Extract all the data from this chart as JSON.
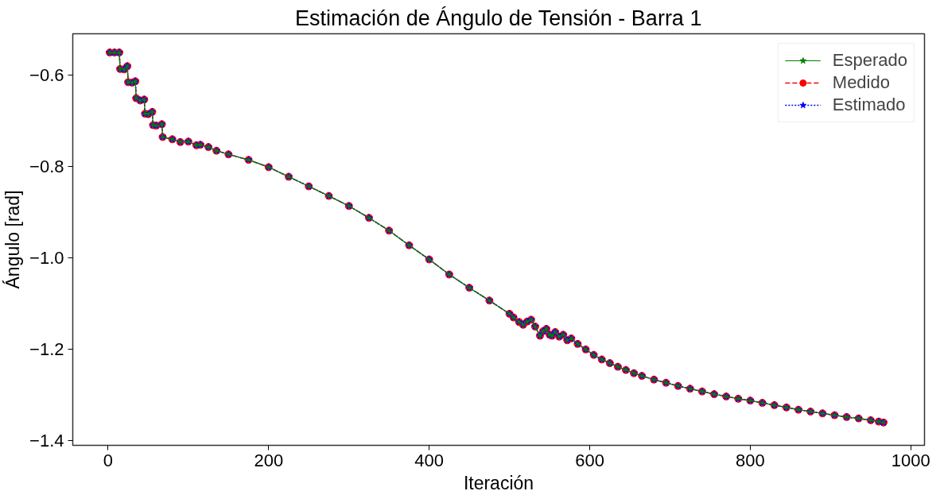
{
  "chart_data": {
    "type": "line",
    "title": "Estimación de Ángulo de Tensión - Barra 1",
    "xlabel": "Iteración",
    "ylabel": "Ángulo [rad]",
    "x": [
      2,
      8,
      14,
      15,
      20,
      24,
      25,
      30,
      34,
      35,
      40,
      45,
      46,
      50,
      55,
      56,
      60,
      67,
      68,
      80,
      90,
      100,
      110,
      115,
      125,
      135,
      150,
      175,
      200,
      225,
      250,
      275,
      300,
      325,
      350,
      375,
      400,
      425,
      450,
      475,
      500,
      505,
      512,
      517,
      522,
      527,
      532,
      538,
      542,
      546,
      550,
      553,
      557,
      562,
      567,
      572,
      577,
      585,
      595,
      605,
      615,
      625,
      635,
      645,
      655,
      665,
      680,
      695,
      710,
      725,
      740,
      755,
      770,
      785,
      800,
      815,
      830,
      845,
      860,
      875,
      890,
      905,
      920,
      935,
      950,
      960,
      966
    ],
    "series": [
      {
        "name": "Esperado",
        "color": "#008000",
        "marker": "star",
        "line_style": "solid",
        "values": [
          -0.55,
          -0.55,
          -0.55,
          -0.586,
          -0.587,
          -0.58,
          -0.615,
          -0.616,
          -0.613,
          -0.65,
          -0.655,
          -0.653,
          -0.684,
          -0.685,
          -0.68,
          -0.709,
          -0.71,
          -0.707,
          -0.735,
          -0.74,
          -0.746,
          -0.745,
          -0.753,
          -0.752,
          -0.757,
          -0.765,
          -0.773,
          -0.785,
          -0.801,
          -0.822,
          -0.843,
          -0.864,
          -0.886,
          -0.912,
          -0.94,
          -0.972,
          -1.003,
          -1.036,
          -1.065,
          -1.093,
          -1.122,
          -1.13,
          -1.14,
          -1.146,
          -1.139,
          -1.135,
          -1.15,
          -1.17,
          -1.16,
          -1.155,
          -1.168,
          -1.17,
          -1.162,
          -1.172,
          -1.168,
          -1.18,
          -1.176,
          -1.188,
          -1.2,
          -1.212,
          -1.222,
          -1.23,
          -1.238,
          -1.245,
          -1.252,
          -1.258,
          -1.266,
          -1.273,
          -1.28,
          -1.286,
          -1.292,
          -1.298,
          -1.303,
          -1.308,
          -1.312,
          -1.317,
          -1.322,
          -1.327,
          -1.332,
          -1.336,
          -1.34,
          -1.344,
          -1.348,
          -1.351,
          -1.355,
          -1.358,
          -1.36
        ]
      },
      {
        "name": "Medido",
        "color": "#ff0000",
        "marker": "circle",
        "line_style": "dashed",
        "values": [
          -0.55,
          -0.55,
          -0.55,
          -0.586,
          -0.587,
          -0.58,
          -0.615,
          -0.616,
          -0.613,
          -0.65,
          -0.655,
          -0.653,
          -0.684,
          -0.685,
          -0.68,
          -0.709,
          -0.71,
          -0.707,
          -0.735,
          -0.74,
          -0.746,
          -0.745,
          -0.753,
          -0.752,
          -0.757,
          -0.765,
          -0.773,
          -0.785,
          -0.801,
          -0.822,
          -0.843,
          -0.864,
          -0.886,
          -0.912,
          -0.94,
          -0.972,
          -1.003,
          -1.036,
          -1.065,
          -1.093,
          -1.122,
          -1.13,
          -1.14,
          -1.146,
          -1.139,
          -1.135,
          -1.15,
          -1.17,
          -1.16,
          -1.155,
          -1.168,
          -1.17,
          -1.162,
          -1.172,
          -1.168,
          -1.18,
          -1.176,
          -1.188,
          -1.2,
          -1.212,
          -1.222,
          -1.23,
          -1.238,
          -1.245,
          -1.252,
          -1.258,
          -1.266,
          -1.273,
          -1.28,
          -1.286,
          -1.292,
          -1.298,
          -1.303,
          -1.308,
          -1.312,
          -1.317,
          -1.322,
          -1.327,
          -1.332,
          -1.336,
          -1.34,
          -1.344,
          -1.348,
          -1.351,
          -1.355,
          -1.358,
          -1.36
        ]
      },
      {
        "name": "Estimado",
        "color": "#0000ff",
        "marker": "star",
        "line_style": "dotted",
        "values": [
          -0.55,
          -0.55,
          -0.55,
          -0.586,
          -0.587,
          -0.58,
          -0.615,
          -0.616,
          -0.613,
          -0.65,
          -0.655,
          -0.653,
          -0.684,
          -0.685,
          -0.68,
          -0.709,
          -0.71,
          -0.707,
          -0.735,
          -0.74,
          -0.746,
          -0.745,
          -0.753,
          -0.752,
          -0.757,
          -0.765,
          -0.773,
          -0.785,
          -0.801,
          -0.822,
          -0.843,
          -0.864,
          -0.886,
          -0.912,
          -0.94,
          -0.972,
          -1.003,
          -1.036,
          -1.065,
          -1.093,
          -1.122,
          -1.13,
          -1.14,
          -1.146,
          -1.139,
          -1.135,
          -1.15,
          -1.17,
          -1.16,
          -1.155,
          -1.168,
          -1.17,
          -1.162,
          -1.172,
          -1.168,
          -1.18,
          -1.176,
          -1.188,
          -1.2,
          -1.212,
          -1.222,
          -1.23,
          -1.238,
          -1.245,
          -1.252,
          -1.258,
          -1.266,
          -1.273,
          -1.28,
          -1.286,
          -1.292,
          -1.298,
          -1.303,
          -1.308,
          -1.312,
          -1.317,
          -1.322,
          -1.327,
          -1.332,
          -1.336,
          -1.34,
          -1.344,
          -1.348,
          -1.351,
          -1.355,
          -1.358,
          -1.36
        ]
      }
    ],
    "xlim": [
      -44,
      1017
    ],
    "ylim": [
      -1.41,
      -0.509
    ],
    "xticks": [
      0,
      200,
      400,
      600,
      800,
      1000
    ],
    "yticks": [
      {
        "value": -1.4,
        "label": "−1.4"
      },
      {
        "value": -1.2,
        "label": "−1.2"
      },
      {
        "value": -1.0,
        "label": "−1.0"
      },
      {
        "value": -0.8,
        "label": "−0.8"
      },
      {
        "value": -0.6,
        "label": "−0.6"
      }
    ],
    "grid": false,
    "legend": "top right"
  }
}
